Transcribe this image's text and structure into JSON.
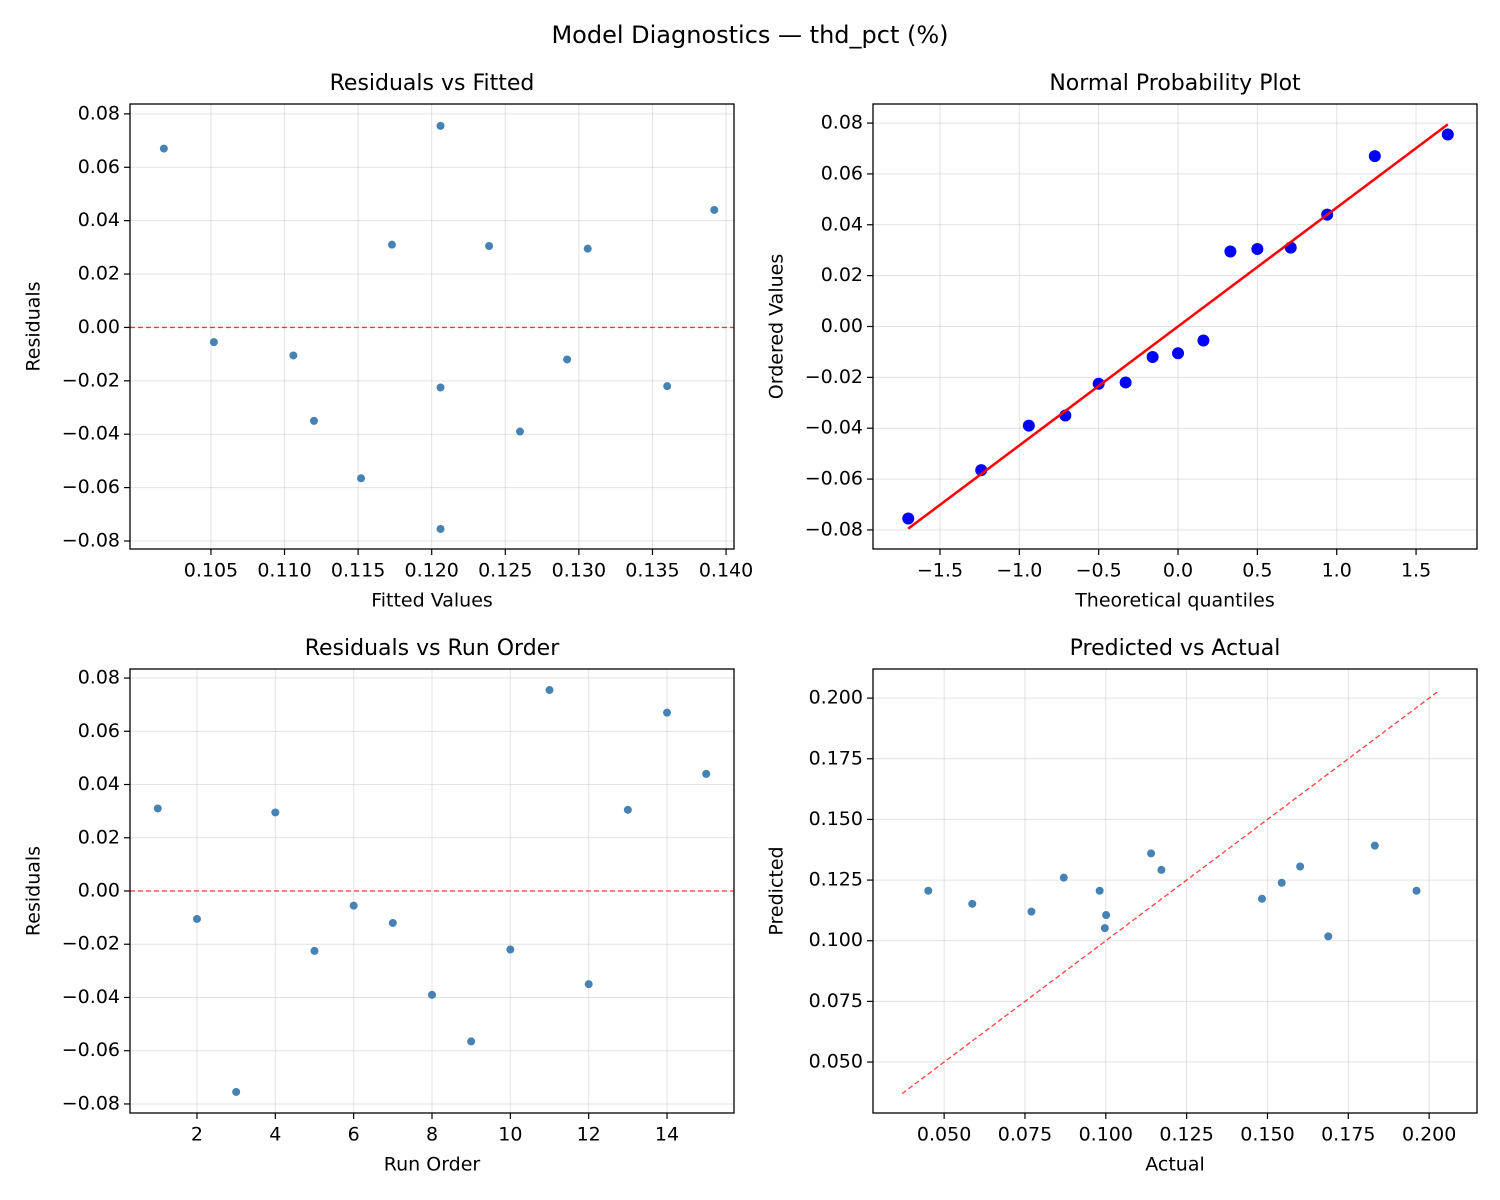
{
  "title": "Model Diagnostics — thd_pct (%)",
  "chart_data": [
    {
      "type": "scatter",
      "title": "Residuals vs Fitted",
      "x_label": "Fitted Values",
      "y_label": "Residuals",
      "x": [
        0.1173,
        0.1106,
        0.1206,
        0.1306,
        0.1206,
        0.1052,
        0.1292,
        0.126,
        0.1152,
        0.136,
        0.1206,
        0.112,
        0.1239,
        0.1018,
        0.1392
      ],
      "values": [
        0.031,
        -0.0105,
        -0.0755,
        0.0295,
        -0.0225,
        -0.0055,
        -0.012,
        -0.039,
        -0.0565,
        -0.022,
        0.0755,
        -0.035,
        0.0305,
        0.067,
        0.044
      ],
      "color": "#4682b4",
      "marker_size": 4,
      "hline": {
        "value": 0,
        "color": "#ff0000"
      },
      "xlim": [
        0.0995,
        0.14054
      ],
      "ylim": [
        -0.083,
        0.0837
      ],
      "xticks": [
        {
          "value": 0.105,
          "label": "0.105"
        },
        {
          "value": 0.11,
          "label": "0.110"
        },
        {
          "value": 0.115,
          "label": "0.115"
        },
        {
          "value": 0.12,
          "label": "0.120"
        },
        {
          "value": 0.125,
          "label": "0.125"
        },
        {
          "value": 0.13,
          "label": "0.130"
        },
        {
          "value": 0.135,
          "label": "0.135"
        },
        {
          "value": 0.14,
          "label": "0.140"
        }
      ],
      "yticks": [
        {
          "value": -0.08,
          "label": "−0.08"
        },
        {
          "value": -0.06,
          "label": "−0.06"
        },
        {
          "value": -0.04,
          "label": "−0.04"
        },
        {
          "value": -0.02,
          "label": "−0.02"
        },
        {
          "value": 0,
          "label": "0.00"
        },
        {
          "value": 0.02,
          "label": "0.02"
        },
        {
          "value": 0.04,
          "label": "0.04"
        },
        {
          "value": 0.06,
          "label": "0.06"
        },
        {
          "value": 0.08,
          "label": "0.08"
        }
      ],
      "grid": true
    },
    {
      "type": "scatter",
      "title": "Normal Probability Plot",
      "x_label": "Theoretical quantiles",
      "y_label": "Ordered Values",
      "x": [
        -1.7,
        -1.24,
        -0.94,
        -0.71,
        -0.5,
        -0.33,
        -0.16,
        0,
        0.16,
        0.33,
        0.5,
        0.71,
        0.94,
        1.24,
        1.7
      ],
      "values": [
        -0.0755,
        -0.0565,
        -0.039,
        -0.035,
        -0.0225,
        -0.022,
        -0.012,
        -0.0105,
        -0.0055,
        0.0295,
        0.0305,
        0.031,
        0.044,
        0.067,
        0.0755
      ],
      "color": "#0000ff",
      "marker_size": 6,
      "lines": [
        {
          "x": [
            -1.7,
            1.7
          ],
          "values": [
            -0.0795,
            0.0795
          ],
          "color": "#ff0000",
          "dashed": false
        }
      ],
      "xlim": [
        -1.922,
        1.884
      ],
      "ylim": [
        -0.0875,
        0.0875
      ],
      "xticks": [
        {
          "value": -1.5,
          "label": "−1.5"
        },
        {
          "value": -1,
          "label": "−1.0"
        },
        {
          "value": -0.5,
          "label": "−0.5"
        },
        {
          "value": 0,
          "label": "0.0"
        },
        {
          "value": 0.5,
          "label": "0.5"
        },
        {
          "value": 1,
          "label": "1.0"
        },
        {
          "value": 1.5,
          "label": "1.5"
        }
      ],
      "yticks": [
        {
          "value": -0.08,
          "label": "−0.08"
        },
        {
          "value": -0.06,
          "label": "−0.06"
        },
        {
          "value": -0.04,
          "label": "−0.04"
        },
        {
          "value": -0.02,
          "label": "−0.02"
        },
        {
          "value": 0,
          "label": "0.00"
        },
        {
          "value": 0.02,
          "label": "0.02"
        },
        {
          "value": 0.04,
          "label": "0.04"
        },
        {
          "value": 0.06,
          "label": "0.06"
        },
        {
          "value": 0.08,
          "label": "0.08"
        }
      ],
      "grid": true
    },
    {
      "type": "scatter",
      "title": "Residuals vs Run Order",
      "x_label": "Run Order",
      "y_label": "Residuals",
      "x": [
        1,
        2,
        3,
        4,
        5,
        6,
        7,
        8,
        9,
        10,
        11,
        12,
        13,
        14,
        15
      ],
      "values": [
        0.031,
        -0.0105,
        -0.0755,
        0.0295,
        -0.0225,
        -0.0055,
        -0.012,
        -0.039,
        -0.0565,
        -0.022,
        0.0755,
        -0.035,
        0.0305,
        0.067,
        0.044
      ],
      "color": "#4682b4",
      "marker_size": 4,
      "hline": {
        "value": 0,
        "color": "#ff0000"
      },
      "xlim": [
        0.29,
        15.71
      ],
      "ylim": [
        -0.0834,
        0.0834
      ],
      "xticks": [
        2,
        4,
        6,
        8,
        10,
        12,
        14
      ],
      "yticks": [
        {
          "value": -0.08,
          "label": "−0.08"
        },
        {
          "value": -0.06,
          "label": "−0.06"
        },
        {
          "value": -0.04,
          "label": "−0.04"
        },
        {
          "value": -0.02,
          "label": "−0.02"
        },
        {
          "value": 0,
          "label": "0.00"
        },
        {
          "value": 0.02,
          "label": "0.02"
        },
        {
          "value": 0.04,
          "label": "0.04"
        },
        {
          "value": 0.06,
          "label": "0.06"
        },
        {
          "value": 0.08,
          "label": "0.08"
        }
      ],
      "grid": true
    },
    {
      "type": "scatter",
      "title": "Predicted vs Actual",
      "x_label": "Actual",
      "y_label": "Predicted",
      "x": [
        0.1483,
        0.1001,
        0.0451,
        0.1601,
        0.0981,
        0.0997,
        0.1172,
        0.087,
        0.0587,
        0.114,
        0.1961,
        0.077,
        0.1544,
        0.1688,
        0.1832
      ],
      "values": [
        0.1173,
        0.1106,
        0.1206,
        0.1306,
        0.1206,
        0.1052,
        0.1292,
        0.126,
        0.1152,
        0.136,
        0.1206,
        0.112,
        0.1239,
        0.1018,
        0.1392
      ],
      "color": "#4682b4",
      "marker_size": 4,
      "lines": [
        {
          "x": [
            0.037,
            0.203
          ],
          "values": [
            0.037,
            0.203
          ],
          "color": "#ff0000",
          "dashed": true
        }
      ],
      "xlim": [
        0.028,
        0.2148
      ],
      "ylim": [
        0.029,
        0.212
      ],
      "xticks": [
        {
          "value": 0.05,
          "label": "0.050"
        },
        {
          "value": 0.075,
          "label": "0.075"
        },
        {
          "value": 0.1,
          "label": "0.100"
        },
        {
          "value": 0.125,
          "label": "0.125"
        },
        {
          "value": 0.15,
          "label": "0.150"
        },
        {
          "value": 0.175,
          "label": "0.175"
        },
        {
          "value": 0.2,
          "label": "0.200"
        }
      ],
      "yticks": [
        {
          "value": 0.05,
          "label": "0.050"
        },
        {
          "value": 0.075,
          "label": "0.075"
        },
        {
          "value": 0.1,
          "label": "0.100"
        },
        {
          "value": 0.125,
          "label": "0.125"
        },
        {
          "value": 0.15,
          "label": "0.150"
        },
        {
          "value": 0.175,
          "label": "0.175"
        },
        {
          "value": 0.2,
          "label": "0.200"
        }
      ],
      "grid": true
    }
  ]
}
